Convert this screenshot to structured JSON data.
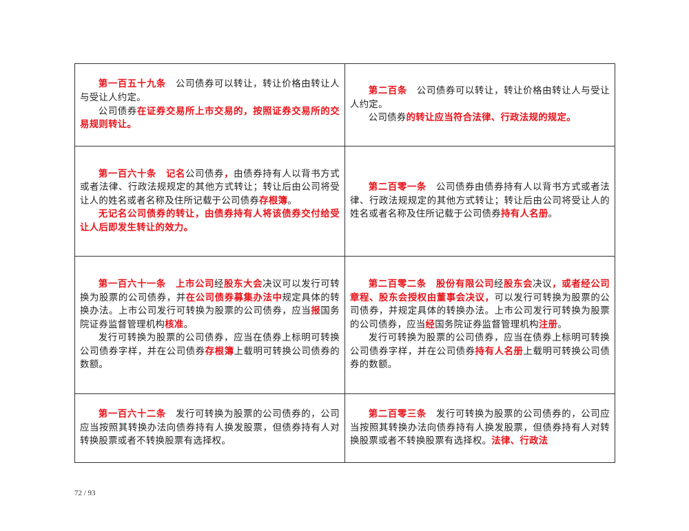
{
  "rows": [
    {
      "left": [
        [
          {
            "t": "第一百五十九条",
            "red": true
          },
          {
            "t": "　公司债券可以转让，转让价格由转让人与受让人约定。",
            "red": false
          }
        ],
        [
          {
            "t": "公司债券",
            "red": false
          },
          {
            "t": "在证券交易所上市交易的，按照证券交易所的交易规则转让。",
            "red": true
          }
        ]
      ],
      "right": [
        [
          {
            "t": "第二百条",
            "red": true
          },
          {
            "t": "　公司债券可以转让，转让价格由转让人与受让人约定。",
            "red": false
          }
        ],
        [
          {
            "t": "公司债券",
            "red": false
          },
          {
            "t": "的转让应当符合法律、行政法规的规定。",
            "red": true
          }
        ]
      ]
    },
    {
      "left": [
        [
          {
            "t": "第一百六十条",
            "red": true
          },
          {
            "t": "　",
            "red": false
          },
          {
            "t": "记名",
            "red": true
          },
          {
            "t": "公司债券",
            "red": false
          },
          {
            "t": "，",
            "red": true
          },
          {
            "t": "由债券持有人以背书方式或者法律、行政法规规定的其他方式转让；转让后由公司将受让人的姓名或者名称及住所记载于公司债券",
            "red": false
          },
          {
            "t": "存根簿",
            "red": true
          },
          {
            "t": "。",
            "red": false
          }
        ],
        [
          {
            "t": "无记名公司债券的转让，由债券持有人将该债券交付给受让人后即发生转让的效力。",
            "red": true
          }
        ]
      ],
      "right": [
        [
          {
            "t": "第二百零一条",
            "red": true
          },
          {
            "t": "　公司债券由债券持有人以背书方式或者法律、行政法规规定的其他方式转让；转让后由公司将受让人的姓名或者名称及住所记载于公司债券",
            "red": false
          },
          {
            "t": "持有人名册",
            "red": true
          },
          {
            "t": "。",
            "red": false
          }
        ]
      ]
    },
    {
      "left": [
        [
          {
            "t": "第一百六十一条",
            "red": true
          },
          {
            "t": "　",
            "red": false
          },
          {
            "t": "上市公司",
            "red": true
          },
          {
            "t": "经",
            "red": false
          },
          {
            "t": "股东大会",
            "red": true
          },
          {
            "t": "决议可以发行可转换为股票的公司债券，并",
            "red": false
          },
          {
            "t": "在公司债券募集办法中",
            "red": true
          },
          {
            "t": "规定具体的转换办法。上市公司发行可转换为股票的公司债券，应当",
            "red": false
          },
          {
            "t": "报",
            "red": true
          },
          {
            "t": "国务院证券监督管理机构",
            "red": false
          },
          {
            "t": "核准",
            "red": true
          },
          {
            "t": "。",
            "red": false
          }
        ],
        [
          {
            "t": "发行可转换为股票的公司债券，应当在债券上标明可转换公司债券字样，并在公司债券",
            "red": false
          },
          {
            "t": "存根簿",
            "red": true
          },
          {
            "t": "上载明可转换公司债券的数额。",
            "red": false
          }
        ]
      ],
      "right": [
        [
          {
            "t": "第二百零二条",
            "red": true
          },
          {
            "t": "　",
            "red": false
          },
          {
            "t": "股份有限公司",
            "red": true
          },
          {
            "t": "经",
            "red": false
          },
          {
            "t": "股东会",
            "red": true
          },
          {
            "t": "决议",
            "red": false
          },
          {
            "t": "，或者经公司章程、股东会授权由董事会决议，",
            "red": true
          },
          {
            "t": "可以发行可转换为股票的公司债券，并规定具体的转换办法。上市公司发行可转换为股票的公司债券，应当",
            "red": false
          },
          {
            "t": "经",
            "red": true
          },
          {
            "t": "国务院证券监督管理机构",
            "red": false
          },
          {
            "t": "注册",
            "red": true
          },
          {
            "t": "。",
            "red": false
          }
        ],
        [
          {
            "t": "发行可转换为股票的公司债券，应当在债券上标明可转换公司债券字样，并在公司债券",
            "red": false
          },
          {
            "t": "持有人名册",
            "red": true
          },
          {
            "t": "上载明可转换公司债券的数额。",
            "red": false
          }
        ]
      ]
    },
    {
      "left": [
        [
          {
            "t": "第一百六十二条",
            "red": true
          },
          {
            "t": "　发行可转换为股票的公司债券的，公司应当按照其转换办法向债券持有人换发股票，但债券持有人对转换股票或者不转换股票有选择权。",
            "red": false
          }
        ]
      ],
      "right": [
        [
          {
            "t": "第二百零三条",
            "red": true
          },
          {
            "t": "　发行可转换为股票的公司债券的，公司应当按照其转换办法向债券持有人换发股票，但债券持有人对转换股票或者不转换股票有选择权。",
            "red": false
          },
          {
            "t": "法律、行政法",
            "red": true
          }
        ]
      ]
    }
  ],
  "footer": {
    "page_number": "72 / 93"
  },
  "colors": {
    "highlight": "#e8141b",
    "text": "#222222",
    "border": "#333333"
  }
}
